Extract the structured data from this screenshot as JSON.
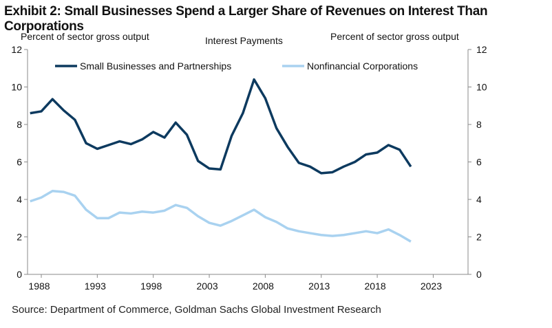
{
  "title": "Exhibit 2: Small Businesses Spend a Larger Share of Revenues on Interest Than Corporations",
  "source": "Source: Department of Commerce, Goldman Sachs Global Investment Research",
  "chart_data": {
    "type": "line",
    "title": "Interest Payments",
    "ylabel_left": "Percent of sector gross output",
    "ylabel_right": "Percent of sector gross output",
    "ylim": [
      0,
      12
    ],
    "yticks": [
      "0",
      "2",
      "4",
      "6",
      "8",
      "10",
      "12"
    ],
    "xticks": [
      "1988",
      "1993",
      "1998",
      "2003",
      "2008",
      "2013",
      "2018",
      "2023"
    ],
    "x": [
      1987,
      1988,
      1989,
      1990,
      1991,
      1992,
      1993,
      1994,
      1995,
      1996,
      1997,
      1998,
      1999,
      2000,
      2001,
      2002,
      2003,
      2004,
      2005,
      2006,
      2007,
      2008,
      2009,
      2010,
      2011,
      2012,
      2013,
      2014,
      2015,
      2016,
      2017,
      2018,
      2019,
      2020,
      2021
    ],
    "series": [
      {
        "name": "Small Businesses and Partnerships",
        "color": "#0d3a5f",
        "values": [
          8.6,
          8.7,
          9.35,
          8.75,
          8.25,
          7.0,
          6.7,
          6.9,
          7.1,
          6.95,
          7.2,
          7.6,
          7.3,
          8.1,
          7.45,
          6.05,
          5.65,
          5.6,
          7.4,
          8.6,
          10.4,
          9.4,
          7.8,
          6.8,
          5.95,
          5.75,
          5.4,
          5.45,
          5.75,
          6.0,
          6.4,
          6.5,
          6.9,
          6.65,
          5.75
        ]
      },
      {
        "name": "Nonfinancial Corporations",
        "color": "#a9d2f0",
        "values": [
          3.9,
          4.1,
          4.45,
          4.4,
          4.2,
          3.45,
          3.0,
          3.0,
          3.3,
          3.25,
          3.35,
          3.3,
          3.4,
          3.7,
          3.55,
          3.1,
          2.75,
          2.6,
          2.85,
          3.15,
          3.45,
          3.05,
          2.8,
          2.45,
          2.3,
          2.2,
          2.1,
          2.05,
          2.1,
          2.2,
          2.3,
          2.2,
          2.4,
          2.1,
          1.75
        ]
      }
    ],
    "legend": "top"
  }
}
